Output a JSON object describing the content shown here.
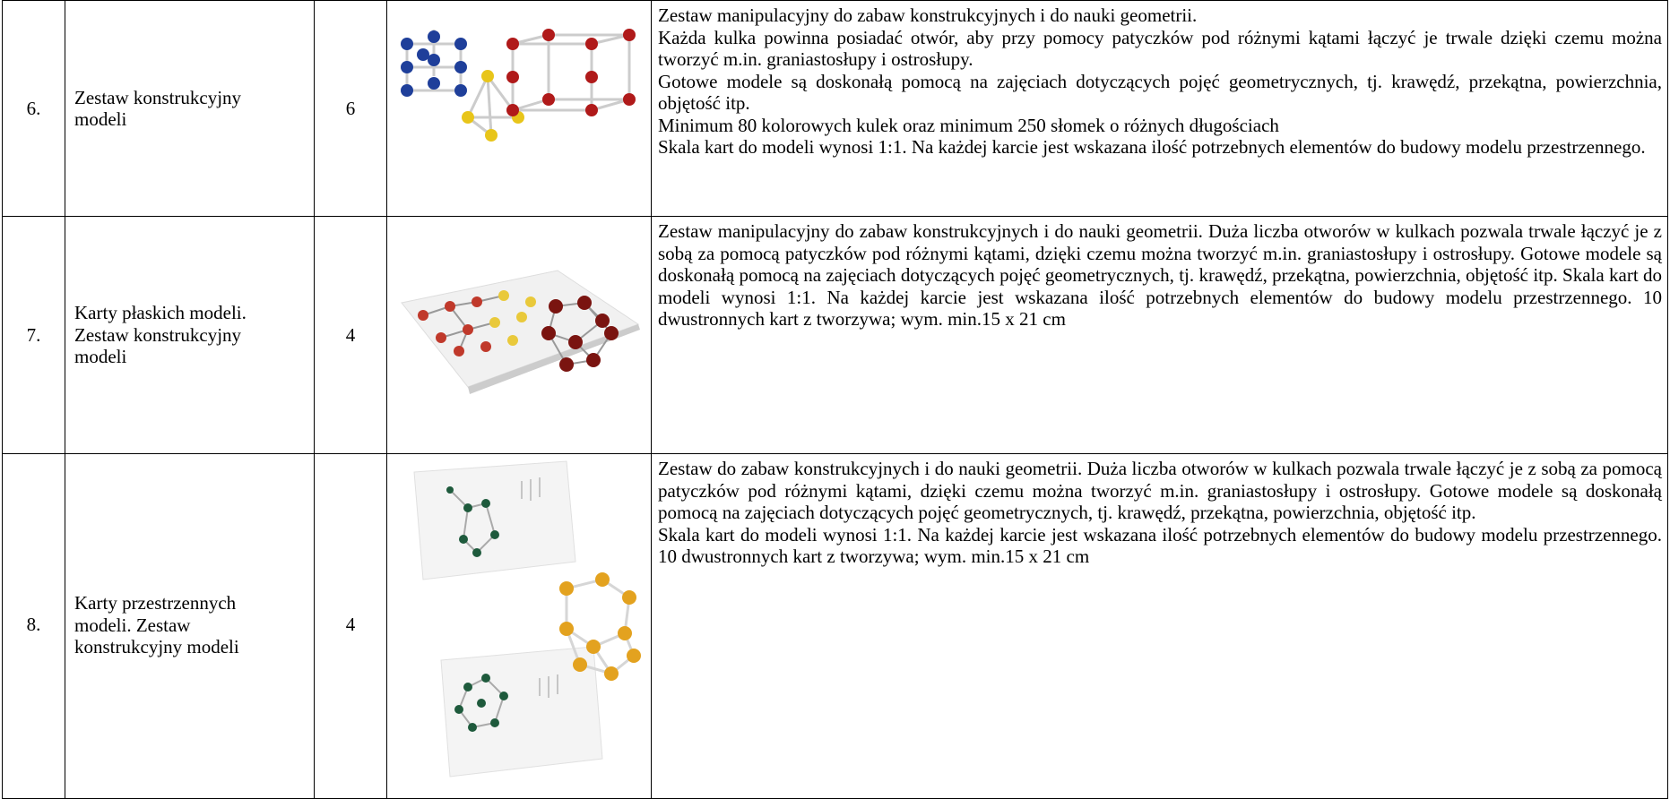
{
  "table": {
    "rows": [
      {
        "number": "6.",
        "name": "Zestaw konstrukcyjny modeli",
        "quantity": "6",
        "description": [
          "Zestaw manipulacyjny do zabaw konstrukcyjnych i do nauki geometrii.",
          "Każda kulka powinna posiadać otwór, aby przy pomocy patyczków pod różnymi kątami łączyć je trwale dzięki czemu można tworzyć m.in. graniastosłupy i ostrosłupy.",
          "Gotowe modele są doskonałą pomocą na zajęciach dotyczących pojęć geometrycznych, tj. krawędź, przekątna,  powierzchnia, objętość itp.",
          "Minimum 80 kolorowych kulek oraz minimum 250 słomek o różnych długościach",
          "Skala kart do modeli wynosi 1:1. Na każdej karcie jest wskazana ilość potrzebnych elementów do budowy modelu przestrzennego."
        ]
      },
      {
        "number": "7.",
        "name": "Karty płaskich modeli. Zestaw konstrukcyjny modeli",
        "quantity": "4",
        "description": [
          "Zestaw manipulacyjny do zabaw konstrukcyjnych i do nauki geometrii. Duża liczba otworów w kulkach pozwala trwale łączyć je z sobą za pomocą patyczków pod różnymi kątami, dzięki czemu można tworzyć m.in. graniastosłupy i ostrosłupy. Gotowe modele są doskonałą pomocą na zajęciach dotyczących pojęć geometrycznych, tj. krawędź, przekątna, powierzchnia, objętość itp. Skala kart do modeli wynosi 1:1. Na każdej karcie jest wskazana ilość potrzebnych elementów do budowy modelu przestrzennego. 10 dwustronnych kart z tworzywa; wym. min.15 x 21 cm"
        ]
      },
      {
        "number": "8.",
        "name": "Karty przestrzennych modeli. Zestaw konstrukcyjny modeli",
        "quantity": "4",
        "description": [
          "Zestaw do zabaw konstrukcyjnych i do nauki geometrii. Duża liczba otworów w kulkach pozwala trwale łączyć je z sobą za pomocą patyczków pod różnymi kątami, dzięki czemu można tworzyć m.in. graniastosłupy i ostrosłupy. Gotowe modele są doskonałą pomocą na zajęciach dotyczących pojęć geometrycznych, tj. krawędź, przekątna, powierzchnia, objętość itp.",
          "Skala kart do modeli wynosi 1:1. Na każdej karcie jest wskazana ilość potrzebnych elementów do budowy modelu przestrzennego. 10 dwustronnych kart z tworzywa; wym. min.15 x 21 cm"
        ]
      }
    ]
  }
}
